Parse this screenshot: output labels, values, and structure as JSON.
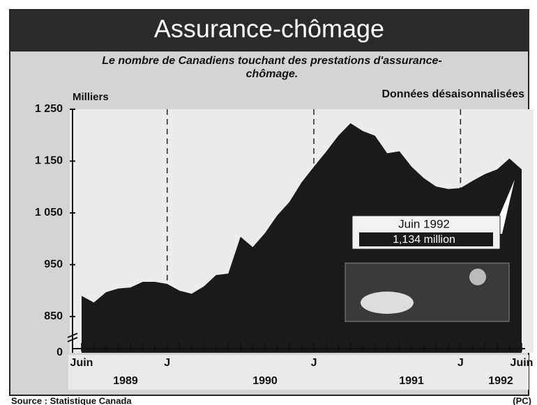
{
  "chart_data": {
    "type": "area",
    "title": "Assurance-chômage",
    "subtitle": "Le nombre de Canadiens touchant des prestations d'assurance-chômage.",
    "y_label": "Milliers",
    "note": "Données désaisonnalisées",
    "categories": [
      "Juin",
      null,
      null,
      null,
      null,
      null,
      null,
      "J",
      null,
      null,
      null,
      null,
      null,
      null,
      null,
      null,
      null,
      null,
      null,
      "J",
      null,
      null,
      null,
      null,
      null,
      null,
      null,
      null,
      null,
      null,
      null,
      "J",
      null,
      null,
      null,
      null,
      "Juin"
    ],
    "years": [
      "1989",
      "1990",
      "1991",
      "1992"
    ],
    "values": [
      890,
      877,
      897,
      904,
      906,
      917,
      917,
      913,
      900,
      894,
      908,
      930,
      933,
      1004,
      984,
      1011,
      1045,
      1071,
      1109,
      1139,
      1168,
      1199,
      1223,
      1208,
      1199,
      1165,
      1169,
      1139,
      1117,
      1101,
      1096,
      1098,
      1112,
      1125,
      1134,
      1155,
      1134
    ],
    "color": "#1a1a1a",
    "ylim": [
      780,
      1250
    ],
    "yticks": [
      850,
      950,
      {
        "value": 1050,
        "label": "1 050"
      },
      {
        "value": 1150,
        "label": "1 150"
      },
      {
        "value": 1250,
        "label": "1 250"
      }
    ],
    "y_break_label": "0",
    "annotation": {
      "title": "Juin 1992",
      "value_label": "1,134 million"
    },
    "source": "Source : Statistique Canada",
    "credit": "(PC)"
  }
}
